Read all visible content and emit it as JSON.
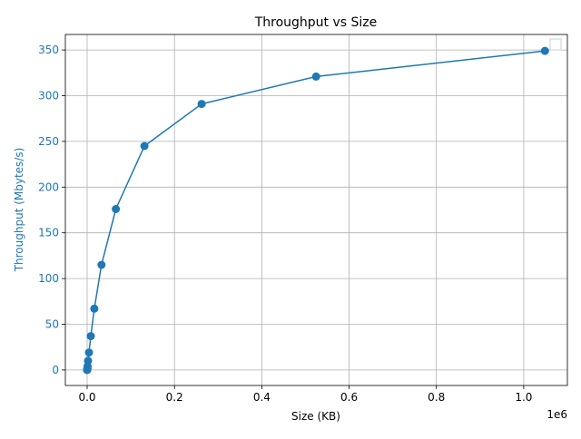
{
  "chart_data": {
    "type": "line",
    "title": "Throughput vs Size",
    "xlabel": "Size (KB)",
    "ylabel": "Throughput (Mbytes/s)",
    "x_offset_label": "1e6",
    "xlim": [
      -50000,
      1100000
    ],
    "ylim": [
      -17,
      367
    ],
    "x_ticks": [
      0,
      200000,
      400000,
      600000,
      800000,
      1000000
    ],
    "x_tick_labels": [
      "0.0",
      "0.2",
      "0.4",
      "0.6",
      "0.8",
      "1.0"
    ],
    "y_ticks": [
      0,
      50,
      100,
      150,
      200,
      250,
      300,
      350
    ],
    "y_tick_labels": [
      "0",
      "50",
      "100",
      "150",
      "200",
      "250",
      "300",
      "350"
    ],
    "grid": true,
    "legend": "top-right (empty)",
    "series": [
      {
        "color": "#1f77b4",
        "marker": "circle",
        "x": [
          1,
          2,
          4,
          8,
          16,
          32,
          64,
          128,
          256,
          512,
          1024,
          2048,
          4096,
          8192,
          16384,
          32768,
          65536,
          131072,
          262144,
          524288,
          1048576
        ],
        "values": [
          0.1,
          0.1,
          0.2,
          0.3,
          0.4,
          0.5,
          0.7,
          0.9,
          1.2,
          2,
          4,
          10,
          19,
          37,
          67,
          115,
          176,
          245,
          291,
          321,
          349
        ]
      }
    ],
    "ylabel_color": "#1f77b4",
    "ytick_color": "#1f77b4"
  }
}
